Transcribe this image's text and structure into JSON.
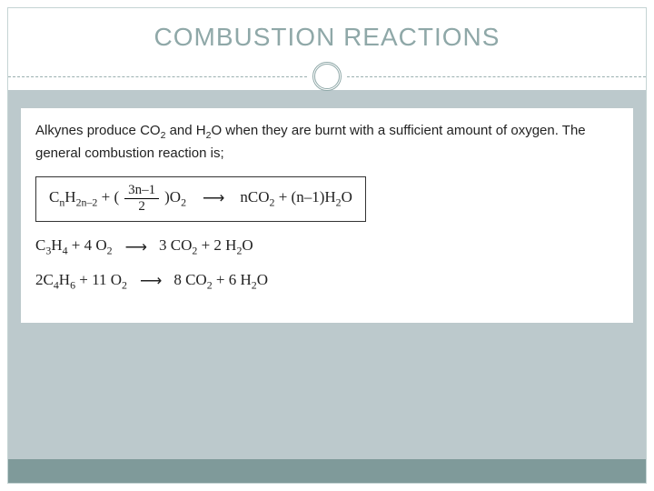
{
  "slide": {
    "title": "COMBUSTION REACTIONS",
    "intro_html": "Alkynes produce CO<sub>2</sub> and H<sub>2</sub>O when they are burnt with a sufficient amount of oxygen. The general combustion reaction is;",
    "general_equation": {
      "left_html": "C<sub>n</sub>H<sub>2n–2</sub> + (",
      "frac_num": "3n–1",
      "frac_den": "2",
      "mid_html": ")O<sub>2</sub>",
      "arrow": "⟶",
      "right_html": "nCO<sub>2</sub> + (n–1)H<sub>2</sub>O"
    },
    "examples": [
      {
        "left_html": "C<sub>3</sub>H<sub>4</sub> + 4 O<sub>2</sub>",
        "arrow": "⟶",
        "right_html": "3 CO<sub>2</sub> + 2 H<sub>2</sub>O"
      },
      {
        "left_html": "2C<sub>4</sub>H<sub>6</sub> + 11 O<sub>2</sub>",
        "arrow": "⟶",
        "right_html": "8 CO<sub>2</sub> + 6 H<sub>2</sub>O"
      }
    ]
  },
  "colors": {
    "title_color": "#8fa8a8",
    "body_bg": "#bcc9cc",
    "footer_band": "#7f9a9a",
    "frame_border": "#c5d4d4"
  }
}
